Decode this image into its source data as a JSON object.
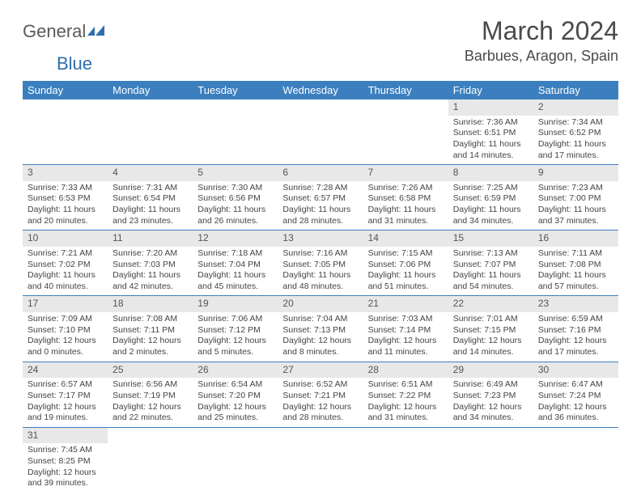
{
  "logo": {
    "text1": "General",
    "text2": "Blue"
  },
  "title": "March 2024",
  "location": "Barbues, Aragon, Spain",
  "colors": {
    "header_bg": "#3b7fbf",
    "header_text": "#ffffff",
    "daybar_bg": "#e8e8e8",
    "border": "#3b7fbf",
    "logo_blue": "#2e6fab"
  },
  "weekdays": [
    "Sunday",
    "Monday",
    "Tuesday",
    "Wednesday",
    "Thursday",
    "Friday",
    "Saturday"
  ],
  "weeks": [
    [
      null,
      null,
      null,
      null,
      null,
      {
        "n": "1",
        "sr": "Sunrise: 7:36 AM",
        "ss": "Sunset: 6:51 PM",
        "d1": "Daylight: 11 hours",
        "d2": "and 14 minutes."
      },
      {
        "n": "2",
        "sr": "Sunrise: 7:34 AM",
        "ss": "Sunset: 6:52 PM",
        "d1": "Daylight: 11 hours",
        "d2": "and 17 minutes."
      }
    ],
    [
      {
        "n": "3",
        "sr": "Sunrise: 7:33 AM",
        "ss": "Sunset: 6:53 PM",
        "d1": "Daylight: 11 hours",
        "d2": "and 20 minutes."
      },
      {
        "n": "4",
        "sr": "Sunrise: 7:31 AM",
        "ss": "Sunset: 6:54 PM",
        "d1": "Daylight: 11 hours",
        "d2": "and 23 minutes."
      },
      {
        "n": "5",
        "sr": "Sunrise: 7:30 AM",
        "ss": "Sunset: 6:56 PM",
        "d1": "Daylight: 11 hours",
        "d2": "and 26 minutes."
      },
      {
        "n": "6",
        "sr": "Sunrise: 7:28 AM",
        "ss": "Sunset: 6:57 PM",
        "d1": "Daylight: 11 hours",
        "d2": "and 28 minutes."
      },
      {
        "n": "7",
        "sr": "Sunrise: 7:26 AM",
        "ss": "Sunset: 6:58 PM",
        "d1": "Daylight: 11 hours",
        "d2": "and 31 minutes."
      },
      {
        "n": "8",
        "sr": "Sunrise: 7:25 AM",
        "ss": "Sunset: 6:59 PM",
        "d1": "Daylight: 11 hours",
        "d2": "and 34 minutes."
      },
      {
        "n": "9",
        "sr": "Sunrise: 7:23 AM",
        "ss": "Sunset: 7:00 PM",
        "d1": "Daylight: 11 hours",
        "d2": "and 37 minutes."
      }
    ],
    [
      {
        "n": "10",
        "sr": "Sunrise: 7:21 AM",
        "ss": "Sunset: 7:02 PM",
        "d1": "Daylight: 11 hours",
        "d2": "and 40 minutes."
      },
      {
        "n": "11",
        "sr": "Sunrise: 7:20 AM",
        "ss": "Sunset: 7:03 PM",
        "d1": "Daylight: 11 hours",
        "d2": "and 42 minutes."
      },
      {
        "n": "12",
        "sr": "Sunrise: 7:18 AM",
        "ss": "Sunset: 7:04 PM",
        "d1": "Daylight: 11 hours",
        "d2": "and 45 minutes."
      },
      {
        "n": "13",
        "sr": "Sunrise: 7:16 AM",
        "ss": "Sunset: 7:05 PM",
        "d1": "Daylight: 11 hours",
        "d2": "and 48 minutes."
      },
      {
        "n": "14",
        "sr": "Sunrise: 7:15 AM",
        "ss": "Sunset: 7:06 PM",
        "d1": "Daylight: 11 hours",
        "d2": "and 51 minutes."
      },
      {
        "n": "15",
        "sr": "Sunrise: 7:13 AM",
        "ss": "Sunset: 7:07 PM",
        "d1": "Daylight: 11 hours",
        "d2": "and 54 minutes."
      },
      {
        "n": "16",
        "sr": "Sunrise: 7:11 AM",
        "ss": "Sunset: 7:08 PM",
        "d1": "Daylight: 11 hours",
        "d2": "and 57 minutes."
      }
    ],
    [
      {
        "n": "17",
        "sr": "Sunrise: 7:09 AM",
        "ss": "Sunset: 7:10 PM",
        "d1": "Daylight: 12 hours",
        "d2": "and 0 minutes."
      },
      {
        "n": "18",
        "sr": "Sunrise: 7:08 AM",
        "ss": "Sunset: 7:11 PM",
        "d1": "Daylight: 12 hours",
        "d2": "and 2 minutes."
      },
      {
        "n": "19",
        "sr": "Sunrise: 7:06 AM",
        "ss": "Sunset: 7:12 PM",
        "d1": "Daylight: 12 hours",
        "d2": "and 5 minutes."
      },
      {
        "n": "20",
        "sr": "Sunrise: 7:04 AM",
        "ss": "Sunset: 7:13 PM",
        "d1": "Daylight: 12 hours",
        "d2": "and 8 minutes."
      },
      {
        "n": "21",
        "sr": "Sunrise: 7:03 AM",
        "ss": "Sunset: 7:14 PM",
        "d1": "Daylight: 12 hours",
        "d2": "and 11 minutes."
      },
      {
        "n": "22",
        "sr": "Sunrise: 7:01 AM",
        "ss": "Sunset: 7:15 PM",
        "d1": "Daylight: 12 hours",
        "d2": "and 14 minutes."
      },
      {
        "n": "23",
        "sr": "Sunrise: 6:59 AM",
        "ss": "Sunset: 7:16 PM",
        "d1": "Daylight: 12 hours",
        "d2": "and 17 minutes."
      }
    ],
    [
      {
        "n": "24",
        "sr": "Sunrise: 6:57 AM",
        "ss": "Sunset: 7:17 PM",
        "d1": "Daylight: 12 hours",
        "d2": "and 19 minutes."
      },
      {
        "n": "25",
        "sr": "Sunrise: 6:56 AM",
        "ss": "Sunset: 7:19 PM",
        "d1": "Daylight: 12 hours",
        "d2": "and 22 minutes."
      },
      {
        "n": "26",
        "sr": "Sunrise: 6:54 AM",
        "ss": "Sunset: 7:20 PM",
        "d1": "Daylight: 12 hours",
        "d2": "and 25 minutes."
      },
      {
        "n": "27",
        "sr": "Sunrise: 6:52 AM",
        "ss": "Sunset: 7:21 PM",
        "d1": "Daylight: 12 hours",
        "d2": "and 28 minutes."
      },
      {
        "n": "28",
        "sr": "Sunrise: 6:51 AM",
        "ss": "Sunset: 7:22 PM",
        "d1": "Daylight: 12 hours",
        "d2": "and 31 minutes."
      },
      {
        "n": "29",
        "sr": "Sunrise: 6:49 AM",
        "ss": "Sunset: 7:23 PM",
        "d1": "Daylight: 12 hours",
        "d2": "and 34 minutes."
      },
      {
        "n": "30",
        "sr": "Sunrise: 6:47 AM",
        "ss": "Sunset: 7:24 PM",
        "d1": "Daylight: 12 hours",
        "d2": "and 36 minutes."
      }
    ],
    [
      {
        "n": "31",
        "sr": "Sunrise: 7:45 AM",
        "ss": "Sunset: 8:25 PM",
        "d1": "Daylight: 12 hours",
        "d2": "and 39 minutes."
      },
      null,
      null,
      null,
      null,
      null,
      null
    ]
  ]
}
